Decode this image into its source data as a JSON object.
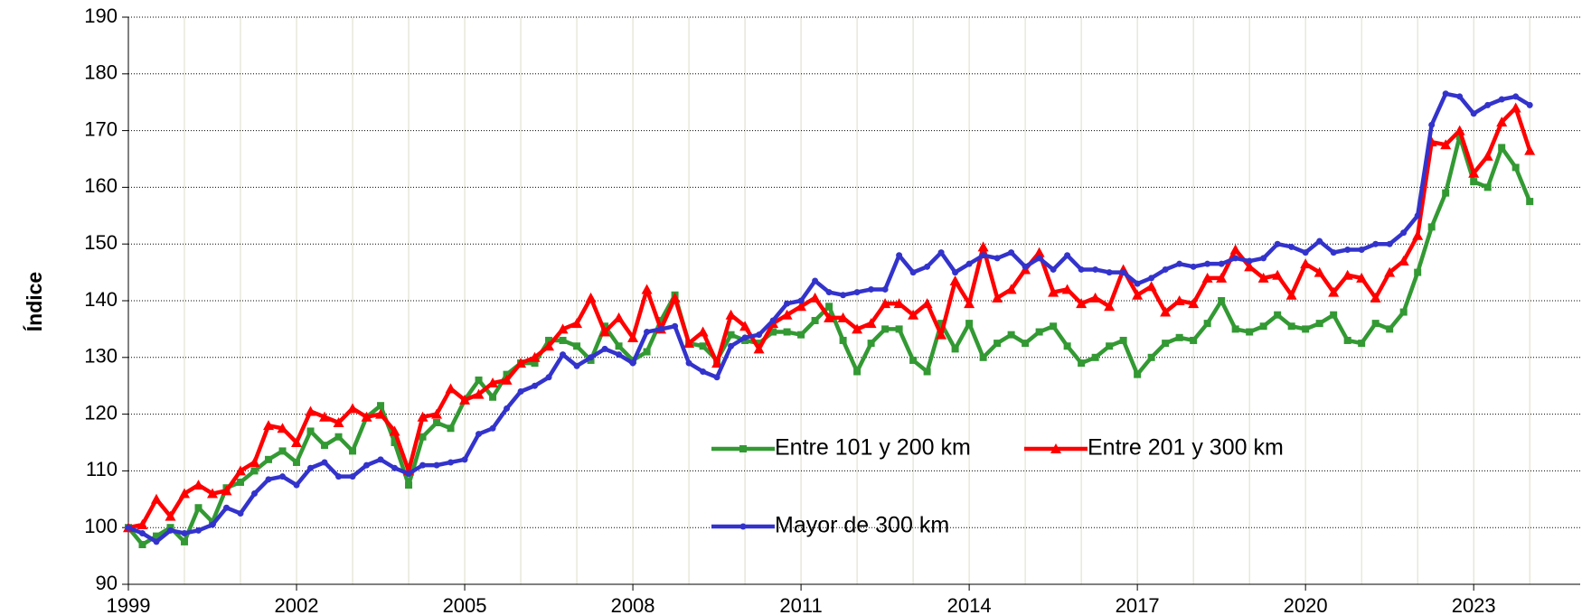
{
  "chart_data": {
    "type": "line",
    "y_label": "Índice",
    "x": [
      1999,
      1999.25,
      1999.5,
      1999.75,
      2000,
      2000.25,
      2000.5,
      2000.75,
      2001,
      2001.25,
      2001.5,
      2001.75,
      2002,
      2002.25,
      2002.5,
      2002.75,
      2003,
      2003.25,
      2003.5,
      2003.75,
      2004,
      2004.25,
      2004.5,
      2004.75,
      2005,
      2005.25,
      2005.5,
      2005.75,
      2006,
      2006.25,
      2006.5,
      2006.75,
      2007,
      2007.25,
      2007.5,
      2007.75,
      2008,
      2008.25,
      2008.5,
      2008.75,
      2009,
      2009.25,
      2009.5,
      2009.75,
      2010,
      2010.25,
      2010.5,
      2010.75,
      2011,
      2011.25,
      2011.5,
      2011.75,
      2012,
      2012.25,
      2012.5,
      2012.75,
      2013,
      2013.25,
      2013.5,
      2013.75,
      2014,
      2014.25,
      2014.5,
      2014.75,
      2015,
      2015.25,
      2015.5,
      2015.75,
      2016,
      2016.25,
      2016.5,
      2016.75,
      2017,
      2017.25,
      2017.5,
      2017.75,
      2018,
      2018.25,
      2018.5,
      2018.75,
      2019,
      2019.25,
      2019.5,
      2019.75,
      2020,
      2020.25,
      2020.5,
      2020.75,
      2021,
      2021.25,
      2021.5,
      2021.75,
      2022,
      2022.25,
      2022.5,
      2022.75,
      2023,
      2023.25,
      2023.5,
      2023.75,
      2024
    ],
    "series": [
      {
        "name": "Entre 101 y 200 km",
        "color": "#339933",
        "marker": "square",
        "values": [
          100,
          97,
          98.5,
          100,
          97.5,
          103.5,
          101,
          107,
          108,
          110,
          112,
          113.5,
          111.5,
          117,
          114.5,
          116,
          113.5,
          119.5,
          121.5,
          115,
          107.5,
          116,
          118.5,
          117.5,
          122.5,
          126,
          123,
          127,
          129,
          129,
          133,
          133,
          132,
          129.5,
          135.5,
          132,
          129.5,
          131,
          136.5,
          141,
          132.5,
          132,
          129.5,
          134,
          133,
          132.5,
          134.5,
          134.5,
          134,
          136.5,
          139,
          133,
          127.5,
          132.5,
          135,
          135,
          129.5,
          127.5,
          136,
          131.5,
          136,
          130,
          132.5,
          134,
          132.5,
          134.5,
          135.5,
          132,
          129,
          130,
          132,
          133,
          127,
          130,
          132.5,
          133.5,
          133,
          136,
          140,
          135,
          134.5,
          135.5,
          137.5,
          135.5,
          135,
          136,
          137.5,
          133,
          132.5,
          136,
          135,
          138,
          145,
          153,
          159,
          169,
          161,
          160,
          167,
          163.5,
          157.5
        ]
      },
      {
        "name": "Entre 201 y 300 km",
        "color": "#ff0000",
        "marker": "triangle",
        "values": [
          100,
          100.5,
          105,
          102,
          106,
          107.5,
          106,
          106.5,
          110,
          111.5,
          118,
          117.5,
          115,
          120.5,
          119.5,
          118.5,
          121,
          119.5,
          120,
          117,
          110,
          119.5,
          120,
          124.5,
          122.5,
          123.5,
          125.5,
          126,
          129,
          130,
          132,
          135,
          136,
          140.5,
          134.5,
          137,
          133.5,
          142,
          135,
          140.5,
          132.5,
          134.5,
          129,
          137.5,
          135.5,
          131.5,
          136,
          137.5,
          139,
          140.5,
          137,
          137,
          135,
          136,
          139.5,
          139.5,
          137.5,
          139.5,
          134,
          143.5,
          139.5,
          149.5,
          140.5,
          142,
          145.5,
          148.5,
          141.5,
          142,
          139.5,
          140.5,
          139,
          145.5,
          141,
          142.5,
          138,
          140,
          139.5,
          144,
          144,
          149,
          146,
          144,
          144.5,
          141,
          146.5,
          145,
          141.5,
          144.5,
          144,
          140.5,
          145,
          147,
          151.5,
          168,
          167.5,
          170,
          162.5,
          165.5,
          171.5,
          174,
          166.5
        ]
      },
      {
        "name": "Mayor de 300 km",
        "color": "#3333cc",
        "marker": "circle",
        "values": [
          100,
          99,
          97.5,
          99.5,
          99,
          99.5,
          100.5,
          103.5,
          102.5,
          106,
          108.5,
          109,
          107.5,
          110.5,
          111.5,
          109,
          109,
          111,
          112,
          110.5,
          109.5,
          111,
          111,
          111.5,
          112,
          116.5,
          117.5,
          121,
          124,
          125,
          126.5,
          130.5,
          128.5,
          130,
          131.5,
          130.5,
          129,
          134.5,
          135,
          135.5,
          129,
          127.5,
          126.5,
          132,
          133.5,
          134,
          136.5,
          139.5,
          140,
          143.5,
          141.5,
          141,
          141.5,
          142,
          142,
          148,
          145,
          146,
          148.5,
          145,
          146.5,
          148,
          147.5,
          148.5,
          146,
          147.5,
          145.5,
          148,
          145.5,
          145.5,
          145,
          145,
          143,
          144,
          145.5,
          146.5,
          146,
          146.5,
          146.5,
          147.5,
          147,
          147.5,
          150,
          149.5,
          148.5,
          150.5,
          148.5,
          149,
          149,
          150,
          150,
          152,
          155,
          171,
          176.5,
          176,
          173,
          174.5,
          175.5,
          176,
          174.5
        ]
      }
    ],
    "xlim": [
      1999,
      2024.9
    ],
    "xticks": [
      1999,
      2002,
      2005,
      2008,
      2011,
      2014,
      2017,
      2020,
      2023
    ],
    "ylim": [
      90,
      190
    ],
    "yticks": [
      90,
      100,
      110,
      120,
      130,
      140,
      150,
      160,
      170,
      180,
      190
    ],
    "grid": true,
    "legend_position": "center"
  }
}
